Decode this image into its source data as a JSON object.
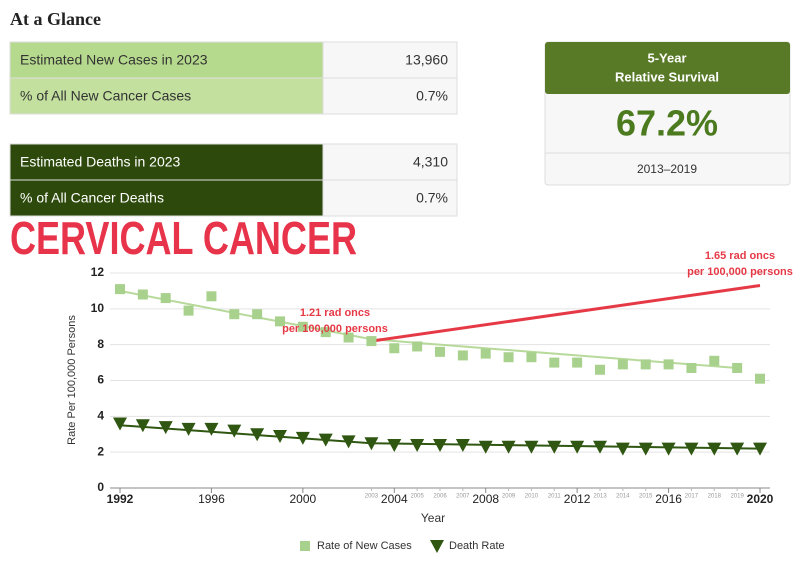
{
  "header": {
    "title": "At a Glance"
  },
  "new_cases_table": {
    "rows": [
      [
        "Estimated New Cases in 2023",
        "13,960"
      ],
      [
        "% of All New Cancer Cases",
        "0.7%"
      ]
    ]
  },
  "deaths_table": {
    "rows": [
      [
        "Estimated Deaths in 2023",
        "4,310"
      ],
      [
        "% of All Cancer Deaths",
        "0.7%"
      ]
    ]
  },
  "survival": {
    "title_lines": [
      "5-Year",
      "Relative Survival"
    ],
    "value": "67.2%",
    "period": "2013–2019"
  },
  "chart_data": {
    "type": "scatter",
    "title": "CERVICAL CANCER",
    "x_label": "Year",
    "y_label": "Rate Per 100,000 Persons",
    "x": [
      1992,
      1993,
      1994,
      1995,
      1996,
      1997,
      1998,
      1999,
      2000,
      2001,
      2002,
      2003,
      2004,
      2005,
      2006,
      2007,
      2008,
      2009,
      2010,
      2011,
      2012,
      2013,
      2014,
      2015,
      2016,
      2017,
      2018,
      2019,
      2020
    ],
    "series": [
      {
        "name": "Rate of New Cases",
        "color": "#a9d18e",
        "marker": "square",
        "values": [
          11.1,
          10.8,
          10.6,
          9.9,
          10.7,
          9.7,
          9.7,
          9.3,
          9.0,
          8.7,
          8.4,
          8.2,
          7.8,
          7.9,
          7.6,
          7.4,
          7.5,
          7.3,
          7.3,
          7.0,
          7.0,
          6.6,
          6.9,
          6.9,
          6.9,
          6.7,
          7.1,
          6.7,
          6.1
        ]
      },
      {
        "name": "Death Rate",
        "color": "#2f5711",
        "marker": "triangle-down",
        "values": [
          3.6,
          3.5,
          3.4,
          3.3,
          3.3,
          3.2,
          3.0,
          2.9,
          2.8,
          2.7,
          2.6,
          2.5,
          2.4,
          2.4,
          2.4,
          2.4,
          2.3,
          2.3,
          2.3,
          2.3,
          2.3,
          2.3,
          2.2,
          2.2,
          2.2,
          2.2,
          2.2,
          2.2,
          2.2
        ]
      }
    ],
    "trend_lines": [
      {
        "color": "#b7d99a",
        "x": [
          1992,
          2003,
          2019
        ],
        "values": [
          11.0,
          8.3,
          6.7
        ]
      },
      {
        "color": "#2f5711",
        "x": [
          1992,
          2003,
          2020
        ],
        "values": [
          3.5,
          2.5,
          2.2
        ]
      },
      {
        "color": "#e63946",
        "x": [
          2003,
          2020
        ],
        "values": [
          8.2,
          11.3
        ]
      }
    ],
    "annotations": [
      {
        "lines": [
          "1.21 rad oncs",
          "per 100,000 persons"
        ]
      },
      {
        "lines": [
          "1.65 rad oncs",
          "per 100,000 persons"
        ]
      }
    ],
    "xlim": [
      1992,
      2020
    ],
    "xticks": [
      1992,
      1996,
      2000,
      2004,
      2008,
      2012,
      2016,
      2020
    ],
    "xticks_minor": [
      2003,
      2005,
      2006,
      2007,
      2009,
      2010,
      2011,
      2013,
      2014,
      2015,
      2017,
      2018,
      2019
    ],
    "ylim": [
      0,
      12
    ],
    "yticks": [
      0,
      2,
      4,
      6,
      8,
      10,
      12
    ],
    "grid": true,
    "legend": "bottom"
  }
}
